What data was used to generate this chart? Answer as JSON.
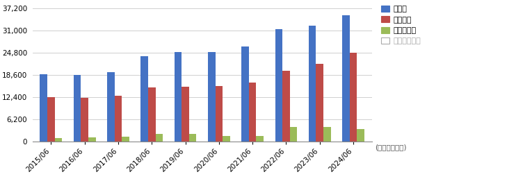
{
  "categories": [
    "2015/06",
    "2016/06",
    "2017/06",
    "2018/06",
    "2019/06",
    "2020/06",
    "2021/06",
    "2022/06",
    "2023/06",
    "2024/06"
  ],
  "総資産": [
    18700,
    18550,
    19350,
    23800,
    24900,
    24900,
    26600,
    31300,
    32300,
    35300
  ],
  "自己資本": [
    12350,
    12200,
    12650,
    15050,
    15250,
    15550,
    16350,
    19700,
    21650,
    24800
  ],
  "有利子負債": [
    850,
    1000,
    1200,
    2100,
    2100,
    1500,
    1400,
    3900,
    3900,
    3400
  ],
  "bar_colors": {
    "総資産": "#4472c4",
    "自己資本": "#be4b48",
    "有利子負債": "#9bbb59"
  },
  "legend_labels": [
    "総資産",
    "自己資本",
    "有利子負債",
    "純有利子負債"
  ],
  "legend_colors_fill": [
    "#4472c4",
    "#be4b48",
    "#9bbb59",
    "#ffffff"
  ],
  "legend_colors_edge": [
    "#4472c4",
    "#be4b48",
    "#9bbb59",
    "#aaaaaa"
  ],
  "checkbox_color": "#4472c4",
  "yticks": [
    0,
    6200,
    12400,
    18600,
    24800,
    31000,
    37200
  ],
  "ylim": [
    0,
    39000
  ],
  "unit_label": "(少位：百万円)",
  "background_color": "#ffffff",
  "grid_color": "#c8c8c8"
}
